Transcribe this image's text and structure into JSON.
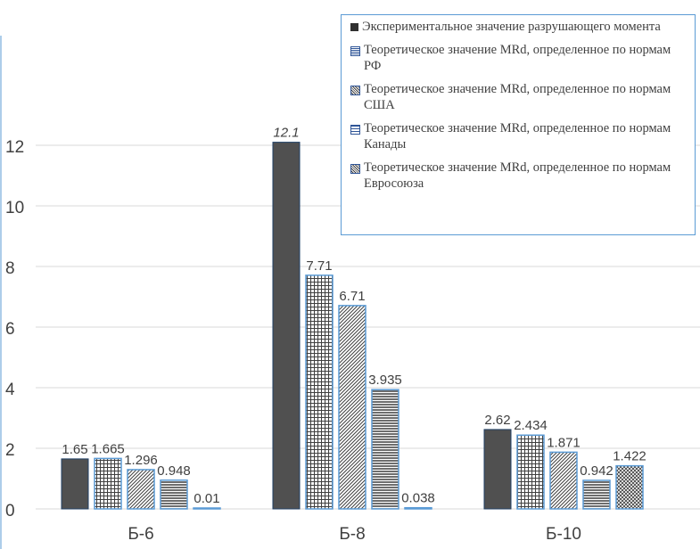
{
  "colors": {
    "dark_bar": "#505050",
    "border_blue": "#5b9bd5",
    "grid": "#d9d9d9",
    "text": "#404040"
  },
  "chart_data": {
    "type": "bar",
    "title": "",
    "xlabel": "",
    "ylabel": "",
    "categories": [
      "Б-6",
      "Б-8",
      "Б-10"
    ],
    "ylim": [
      0,
      12
    ],
    "yticks": [
      "0",
      "2",
      "4",
      "6",
      "8",
      "10",
      "12"
    ],
    "grid": true,
    "legend_position": "top-right",
    "series": [
      {
        "name": "Экспериментальное значение разрушающего момента",
        "pattern": "solid",
        "values": [
          1.65,
          12.1,
          2.62
        ],
        "labels": [
          "1.65",
          "12.1",
          "2.62"
        ]
      },
      {
        "name": "Теоретическое значение MRd, определенное по нормам РФ",
        "pattern": "grid",
        "values": [
          1.665,
          7.71,
          2.434
        ],
        "labels": [
          "1.665",
          "7.71",
          "2.434"
        ]
      },
      {
        "name": "Теоретическое значение MRd, определенное по нормам США",
        "pattern": "diagonal",
        "values": [
          1.296,
          6.71,
          1.871
        ],
        "labels": [
          "1.296",
          "6.71",
          "1.871"
        ]
      },
      {
        "name": "Теоретическое значение MRd, определенное по нормам Канады",
        "pattern": "horizontal",
        "values": [
          0.948,
          3.935,
          0.942
        ],
        "labels": [
          "0.948",
          "3.935",
          "0.942"
        ]
      },
      {
        "name": "Теоретическое значение MRd, определенное по нормам Евросоюза",
        "pattern": "crosshatch",
        "values": [
          0.01,
          0.038,
          1.422
        ],
        "labels": [
          "0.01",
          "0.038",
          "1.422"
        ]
      }
    ]
  }
}
